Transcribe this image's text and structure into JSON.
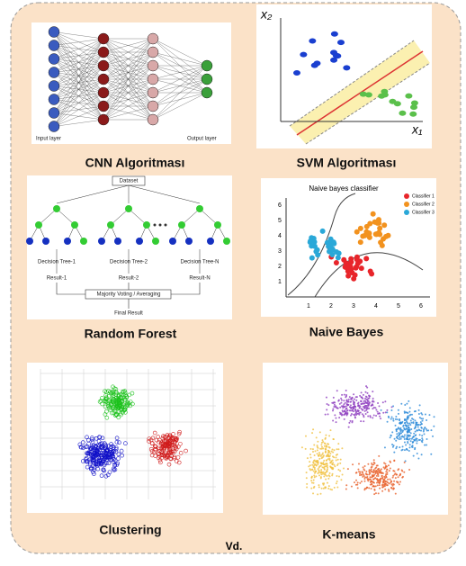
{
  "panels": [
    {
      "caption": "CNN Algoritması",
      "labels": [
        "Input layer",
        "Output layer"
      ]
    },
    {
      "caption": "SVM Algoritması",
      "labels": [
        "x₂",
        "x₁"
      ]
    },
    {
      "caption": "Random Forest",
      "labels": [
        "Dataset",
        "Decision Tree-1",
        "Decision Tree-2",
        "Decision Tree-N",
        "Result-1",
        "Result-2",
        "Result-N",
        "Majority Voting / Averaging",
        "Final Result"
      ]
    },
    {
      "caption": "Naive Bayes",
      "title": "Naive bayes classifier",
      "legend": [
        "Classifier 1",
        "Classifier 2",
        "Classifier 3"
      ],
      "xticks": [
        1,
        2,
        3,
        4,
        5,
        6
      ],
      "yticks": [
        1,
        2,
        3,
        4,
        5,
        6
      ]
    },
    {
      "caption": "Clustering"
    },
    {
      "caption": "K-means"
    }
  ],
  "footer": "Vd."
}
